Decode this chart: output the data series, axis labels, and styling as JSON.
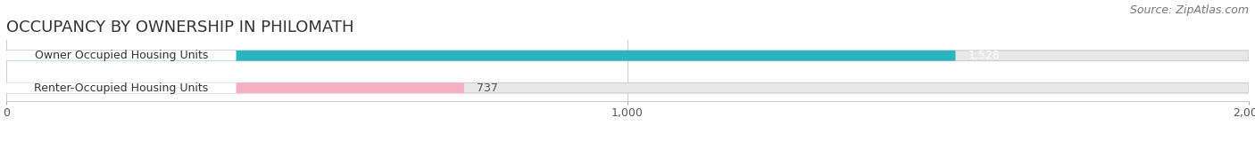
{
  "title": "OCCUPANCY BY OWNERSHIP IN PHILOMATH",
  "source": "Source: ZipAtlas.com",
  "categories": [
    "Owner Occupied Housing Units",
    "Renter-Occupied Housing Units"
  ],
  "values": [
    1528,
    737
  ],
  "bar_colors": [
    "#2ab5be",
    "#f5afc4"
  ],
  "bar_label_colors": [
    "white",
    "#555555"
  ],
  "value_labels": [
    "1,528",
    "737"
  ],
  "xlim": [
    0,
    2000
  ],
  "xticks": [
    0,
    1000,
    2000
  ],
  "xtick_labels": [
    "0",
    "1,000",
    "2,000"
  ],
  "background_color": "#ffffff",
  "bar_background_color": "#e8e8e8",
  "title_fontsize": 13,
  "source_fontsize": 9,
  "label_fontsize": 9,
  "value_fontsize": 9,
  "tick_fontsize": 9
}
